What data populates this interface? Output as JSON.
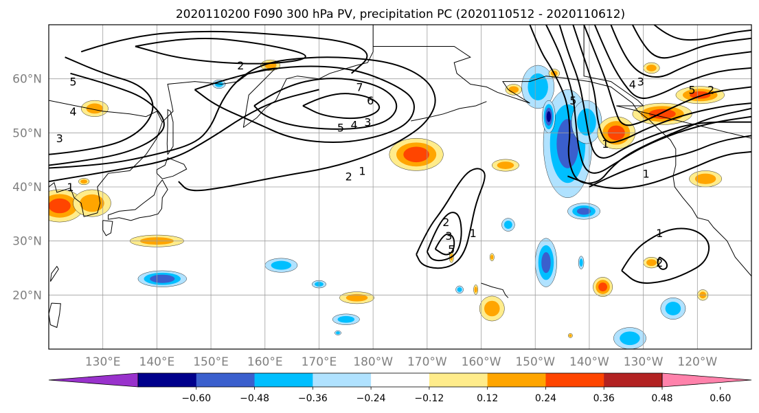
{
  "title": "2020110200 F090 300 hPa PV, precipitation PC (2020110512 - 2020110612)",
  "map": {
    "lat_labels": [
      "60°N",
      "50°N",
      "40°N",
      "30°N",
      "20°N"
    ],
    "lat_values": [
      60,
      50,
      40,
      30,
      20
    ],
    "lon_labels": [
      "130°E",
      "140°E",
      "150°E",
      "160°E",
      "170°E",
      "180°W",
      "170°W",
      "160°W",
      "150°W",
      "140°W",
      "130°W",
      "120°W"
    ],
    "lon_values": [
      130,
      140,
      150,
      160,
      170,
      180,
      190,
      200,
      210,
      220,
      230,
      240
    ],
    "lon_range": [
      120,
      250
    ],
    "lat_range": [
      10,
      70
    ],
    "land_color": "#ffffff",
    "coast_color": "#000000",
    "grid_color": "#9e9e9e"
  },
  "pv_contours": {
    "color": "#000000",
    "labels": [
      {
        "text": "2",
        "lon": 155.5,
        "lat": 62.5
      },
      {
        "text": "5",
        "lon": 124.5,
        "lat": 59.5
      },
      {
        "text": "4",
        "lon": 124.5,
        "lat": 54.0
      },
      {
        "text": "3",
        "lon": 122.0,
        "lat": 49.0
      },
      {
        "text": "7",
        "lon": 177.5,
        "lat": 58.5
      },
      {
        "text": "6",
        "lon": 179.5,
        "lat": 56.0
      },
      {
        "text": "5",
        "lon": 174.0,
        "lat": 51.0
      },
      {
        "text": "4",
        "lon": 176.5,
        "lat": 51.5
      },
      {
        "text": "3",
        "lon": 179.0,
        "lat": 52.0
      },
      {
        "text": "2",
        "lon": 175.5,
        "lat": 42.0
      },
      {
        "text": "1",
        "lon": 178.0,
        "lat": 43.0
      },
      {
        "text": "1",
        "lon": 124.0,
        "lat": 40.0
      },
      {
        "text": "2",
        "lon": 193.5,
        "lat": 33.5
      },
      {
        "text": "3",
        "lon": 194.0,
        "lat": 31.0
      },
      {
        "text": "1",
        "lon": 198.5,
        "lat": 31.5
      },
      {
        "text": "5",
        "lon": 194.5,
        "lat": 28.5
      },
      {
        "text": "1",
        "lon": 233.0,
        "lat": 31.5
      },
      {
        "text": "2",
        "lon": 233.0,
        "lat": 26.0
      },
      {
        "text": "5",
        "lon": 217.0,
        "lat": 56.0
      },
      {
        "text": "4",
        "lon": 228.0,
        "lat": 59.0
      },
      {
        "text": "3",
        "lon": 229.5,
        "lat": 59.5
      },
      {
        "text": "5",
        "lon": 239.0,
        "lat": 58.0
      },
      {
        "text": "2",
        "lon": 242.5,
        "lat": 58.0
      },
      {
        "text": "1",
        "lon": 223.0,
        "lat": 48.0
      },
      {
        "text": "1",
        "lon": 230.5,
        "lat": 42.5
      }
    ]
  },
  "precip_blobs": [
    {
      "lon": 122,
      "lat": 36.5,
      "rx": 4.5,
      "ry": 3.0,
      "level": 0.4
    },
    {
      "lon": 128,
      "lat": 37.0,
      "rx": 3.5,
      "ry": 2.5,
      "level": 0.3
    },
    {
      "lon": 128.5,
      "lat": 54.5,
      "rx": 2.5,
      "ry": 1.5,
      "level": 0.28
    },
    {
      "lon": 161.0,
      "lat": 62.5,
      "rx": 1.8,
      "ry": 1.0,
      "level": 0.28
    },
    {
      "lon": 151.5,
      "lat": 59.0,
      "rx": 1.2,
      "ry": 0.8,
      "level": -0.28
    },
    {
      "lon": 188.0,
      "lat": 46.0,
      "rx": 5.0,
      "ry": 3.0,
      "level": 0.42
    },
    {
      "lon": 140.0,
      "lat": 30.0,
      "rx": 5.0,
      "ry": 1.1,
      "level": 0.28
    },
    {
      "lon": 141.0,
      "lat": 23.0,
      "rx": 4.5,
      "ry": 1.5,
      "level": -0.45
    },
    {
      "lon": 163.0,
      "lat": 25.5,
      "rx": 3.0,
      "ry": 1.3,
      "level": -0.28
    },
    {
      "lon": 170.0,
      "lat": 22.0,
      "rx": 1.3,
      "ry": 0.7,
      "level": -0.28
    },
    {
      "lon": 177.0,
      "lat": 19.5,
      "rx": 3.2,
      "ry": 1.1,
      "level": 0.28
    },
    {
      "lon": 175.0,
      "lat": 15.5,
      "rx": 2.5,
      "ry": 1.0,
      "level": -0.28
    },
    {
      "lon": 173.5,
      "lat": 13.0,
      "rx": 0.6,
      "ry": 0.4,
      "level": -0.28
    },
    {
      "lon": 194.5,
      "lat": 27.0,
      "rx": 0.4,
      "ry": 1.0,
      "level": 0.28
    },
    {
      "lon": 202.0,
      "lat": 17.5,
      "rx": 2.3,
      "ry": 2.3,
      "level": 0.28
    },
    {
      "lon": 199.0,
      "lat": 21.0,
      "rx": 0.4,
      "ry": 0.9,
      "level": 0.28
    },
    {
      "lon": 196.0,
      "lat": 21.0,
      "rx": 0.7,
      "ry": 0.7,
      "level": -0.28
    },
    {
      "lon": 204.5,
      "lat": 44.0,
      "rx": 2.5,
      "ry": 1.1,
      "level": 0.28
    },
    {
      "lon": 202.0,
      "lat": 27.0,
      "rx": 0.4,
      "ry": 0.7,
      "level": 0.28
    },
    {
      "lon": 205.0,
      "lat": 33.0,
      "rx": 1.2,
      "ry": 1.2,
      "level": -0.28
    },
    {
      "lon": 212.0,
      "lat": 26.0,
      "rx": 2.0,
      "ry": 4.5,
      "level": -0.38
    },
    {
      "lon": 219.0,
      "lat": 35.5,
      "rx": 3.0,
      "ry": 1.5,
      "level": -0.38
    },
    {
      "lon": 218.5,
      "lat": 26.0,
      "rx": 0.5,
      "ry": 1.2,
      "level": -0.28
    },
    {
      "lon": 222.5,
      "lat": 21.5,
      "rx": 1.8,
      "ry": 1.8,
      "level": 0.4
    },
    {
      "lon": 235.5,
      "lat": 17.5,
      "rx": 2.3,
      "ry": 2.0,
      "level": -0.28
    },
    {
      "lon": 227.5,
      "lat": 12.0,
      "rx": 3.0,
      "ry": 2.0,
      "level": -0.28
    },
    {
      "lon": 216.5,
      "lat": 12.5,
      "rx": 0.4,
      "ry": 0.4,
      "level": 0.28
    },
    {
      "lon": 241.0,
      "lat": 20.0,
      "rx": 1.0,
      "ry": 1.0,
      "level": 0.28
    },
    {
      "lon": 241.5,
      "lat": 41.5,
      "rx": 3.0,
      "ry": 1.5,
      "level": 0.3
    },
    {
      "lon": 231.5,
      "lat": 26.0,
      "rx": 1.5,
      "ry": 1.0,
      "level": 0.28
    },
    {
      "lon": 210.5,
      "lat": 58.5,
      "rx": 3.0,
      "ry": 4.0,
      "level": -0.28
    },
    {
      "lon": 216.0,
      "lat": 48.0,
      "rx": 4.5,
      "ry": 10.0,
      "level": -0.4
    },
    {
      "lon": 212.5,
      "lat": 53.0,
      "rx": 1.2,
      "ry": 3.0,
      "level": -0.5
    },
    {
      "lon": 219.5,
      "lat": 52.0,
      "rx": 2.8,
      "ry": 4.0,
      "level": -0.28
    },
    {
      "lon": 206.0,
      "lat": 58.0,
      "rx": 1.5,
      "ry": 1.0,
      "level": 0.28
    },
    {
      "lon": 213.5,
      "lat": 61.0,
      "rx": 1.0,
      "ry": 0.8,
      "level": 0.28
    },
    {
      "lon": 231.5,
      "lat": 62.0,
      "rx": 1.5,
      "ry": 1.0,
      "level": 0.28
    },
    {
      "lon": 225.0,
      "lat": 50.0,
      "rx": 3.5,
      "ry": 3.0,
      "level": 0.4
    },
    {
      "lon": 233.5,
      "lat": 53.5,
      "rx": 5.5,
      "ry": 2.0,
      "level": 0.4
    },
    {
      "lon": 240.5,
      "lat": 57.0,
      "rx": 4.5,
      "ry": 1.6,
      "level": 0.38
    },
    {
      "lon": 126.5,
      "lat": 41.0,
      "rx": 1.0,
      "ry": 0.6,
      "level": 0.28
    }
  ],
  "colorbar": {
    "boundaries": [
      -0.72,
      -0.6,
      -0.48,
      -0.36,
      -0.24,
      -0.12,
      0.12,
      0.24,
      0.36,
      0.48,
      0.6,
      0.72
    ],
    "colors": [
      "#9932cc",
      "#00008b",
      "#3a5fcd",
      "#00bfff",
      "#b0e2ff",
      "#ffffff",
      "#ffec8b",
      "#ffa500",
      "#ff4500",
      "#b22222",
      "#ff82ab"
    ],
    "tick_labels": [
      "−0.60",
      "−0.48",
      "−0.36",
      "−0.24",
      "−0.12",
      "0.12",
      "0.24",
      "0.36",
      "0.48",
      "0.60"
    ],
    "tick_values": [
      -0.6,
      -0.48,
      -0.36,
      -0.24,
      -0.12,
      0.12,
      0.24,
      0.36,
      0.48,
      0.6
    ],
    "extend": "both"
  }
}
